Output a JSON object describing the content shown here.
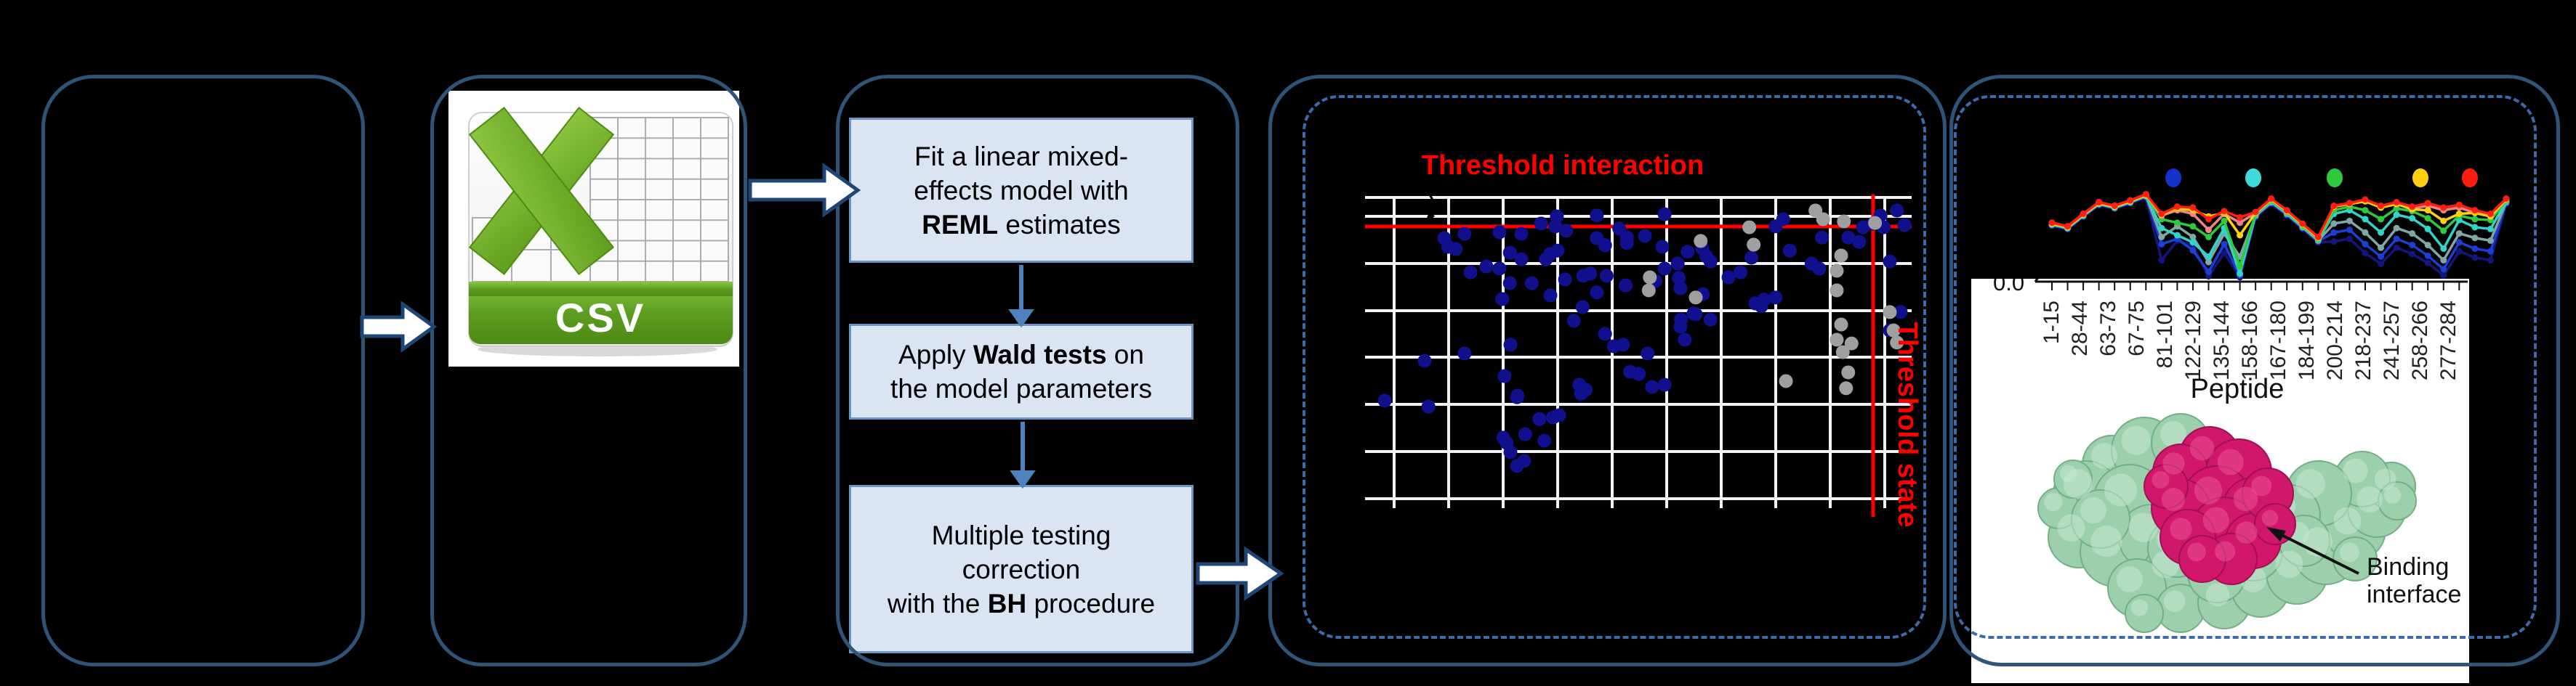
{
  "csv_icon": {
    "label": "CSV",
    "green": "#6fb12a",
    "banner_dark": "#4e8a16"
  },
  "flowchart": {
    "boxes": [
      {
        "lines": [
          [
            {
              "t": "Fit a linear mixed-",
              "b": false
            }
          ],
          [
            {
              "t": "effects model with",
              "b": false
            }
          ],
          [
            {
              "t": "REML",
              "b": true
            },
            {
              "t": " estimates",
              "b": false
            }
          ]
        ]
      },
      {
        "lines": [
          [
            {
              "t": "Apply ",
              "b": false
            },
            {
              "t": "Wald tests",
              "b": true
            },
            {
              "t": " on",
              "b": false
            }
          ],
          [
            {
              "t": "the model parameters",
              "b": false
            }
          ]
        ]
      },
      {
        "lines": [
          [
            {
              "t": "Multiple testing",
              "b": false
            }
          ],
          [
            {
              "t": "correction",
              "b": false
            }
          ],
          [
            {
              "t": "with the ",
              "b": false
            },
            {
              "t": "BH",
              "b": true
            },
            {
              "t": " procedure",
              "b": false
            }
          ]
        ]
      }
    ]
  },
  "chart_data": [
    {
      "type": "scatter",
      "title": "Threshold interaction",
      "state_label": "Threshold state",
      "threshold_color": "#ff0000",
      "point_color": "#10108f",
      "gray_color": "#9f9f9f",
      "grid": "on",
      "threshold_interaction_y": 0.093,
      "threshold_state_x": 0.93,
      "blue_points": [
        [
          0.145,
          0.131
        ],
        [
          0.152,
          0.159
        ],
        [
          0.166,
          0.166
        ],
        [
          0.182,
          0.117
        ],
        [
          0.193,
          0.241
        ],
        [
          0.222,
          0.222
        ],
        [
          0.246,
          0.112
        ],
        [
          0.286,
          0.117
        ],
        [
          0.246,
          0.229
        ],
        [
          0.265,
          0.178
        ],
        [
          0.339,
          0.182
        ],
        [
          0.286,
          0.199
        ],
        [
          0.351,
          0.061
        ],
        [
          0.424,
          0.058
        ],
        [
          0.548,
          0.054
        ],
        [
          0.322,
          0.084
        ],
        [
          0.348,
          0.093
        ],
        [
          0.368,
          0.107
        ],
        [
          0.465,
          0.1
        ],
        [
          0.479,
          0.129
        ],
        [
          0.544,
          0.159
        ],
        [
          0.424,
          0.131
        ],
        [
          0.439,
          0.154
        ],
        [
          0.479,
          0.147
        ],
        [
          0.512,
          0.124
        ],
        [
          0.548,
          0.229
        ],
        [
          0.572,
          0.213
        ],
        [
          0.531,
          0.269
        ],
        [
          0.574,
          0.259
        ],
        [
          0.399,
          0.252
        ],
        [
          0.442,
          0.252
        ],
        [
          0.477,
          0.283
        ],
        [
          0.305,
          0.276
        ],
        [
          0.331,
          0.199
        ],
        [
          0.339,
          0.315
        ],
        [
          0.352,
          0.171
        ],
        [
          0.366,
          0.264
        ],
        [
          0.382,
          0.397
        ],
        [
          0.398,
          0.353
        ],
        [
          0.412,
          0.245
        ],
        [
          0.424,
          0.306
        ],
        [
          0.439,
          0.439
        ],
        [
          0.455,
          0.479
        ],
        [
          0.472,
          0.474
        ],
        [
          0.485,
          0.561
        ],
        [
          0.501,
          0.568
        ],
        [
          0.517,
          0.502
        ],
        [
          0.525,
          0.61
        ],
        [
          0.548,
          0.603
        ],
        [
          0.392,
          0.603
        ],
        [
          0.404,
          0.619
        ],
        [
          0.344,
          0.708
        ],
        [
          0.036,
          0.654
        ],
        [
          0.116,
          0.673
        ],
        [
          0.109,
          0.526
        ],
        [
          0.182,
          0.502
        ],
        [
          0.251,
          0.327
        ],
        [
          0.265,
          0.276
        ],
        [
          0.266,
          0.474
        ],
        [
          0.255,
          0.575
        ],
        [
          0.278,
          0.643
        ],
        [
          0.293,
          0.762
        ],
        [
          0.259,
          0.79
        ],
        [
          0.266,
          0.82
        ],
        [
          0.278,
          0.864
        ],
        [
          0.319,
          0.713
        ],
        [
          0.355,
          0.701
        ],
        [
          0.253,
          0.773
        ],
        [
          0.291,
          0.848
        ],
        [
          0.328,
          0.783
        ],
        [
          0.395,
          0.631
        ],
        [
          0.279,
          0.638
        ],
        [
          0.59,
          0.175
        ],
        [
          0.617,
          0.164
        ],
        [
          0.624,
          0.189
        ],
        [
          0.632,
          0.206
        ],
        [
          0.577,
          0.292
        ],
        [
          0.618,
          0.311
        ],
        [
          0.605,
          0.376
        ],
        [
          0.578,
          0.393
        ],
        [
          0.577,
          0.416
        ],
        [
          0.601,
          0.374
        ],
        [
          0.632,
          0.393
        ],
        [
          0.585,
          0.458
        ],
        [
          0.665,
          0.257
        ],
        [
          0.687,
          0.241
        ],
        [
          0.707,
          0.194
        ],
        [
          0.751,
          0.093
        ],
        [
          0.765,
          0.07
        ],
        [
          0.714,
          0.341
        ],
        [
          0.725,
          0.35
        ],
        [
          0.73,
          0.329
        ],
        [
          0.751,
          0.322
        ],
        [
          0.777,
          0.171
        ],
        [
          0.817,
          0.213
        ],
        [
          0.831,
          0.229
        ],
        [
          0.836,
          0.129
        ],
        [
          0.884,
          0.129
        ],
        [
          0.904,
          0.143
        ],
        [
          0.911,
          0.096
        ],
        [
          0.93,
          0.084
        ],
        [
          0.943,
          0.058
        ],
        [
          0.949,
          0.096
        ],
        [
          0.973,
          0.042
        ],
        [
          0.987,
          0.089
        ],
        [
          0.96,
          0.206
        ],
        [
          0.98,
          0.369
        ],
        [
          0.96,
          0.428
        ]
      ],
      "gray_points": [
        [
          0.824,
          0.042
        ],
        [
          0.838,
          0.07
        ],
        [
          0.876,
          0.077
        ],
        [
          0.933,
          0.082
        ],
        [
          0.703,
          0.096
        ],
        [
          0.711,
          0.152
        ],
        [
          0.614,
          0.14
        ],
        [
          0.605,
          0.322
        ],
        [
          0.521,
          0.257
        ],
        [
          0.519,
          0.299
        ],
        [
          0.871,
          0.187
        ],
        [
          0.863,
          0.236
        ],
        [
          0.863,
          0.299
        ],
        [
          0.96,
          0.369
        ],
        [
          0.871,
          0.409
        ],
        [
          0.863,
          0.458
        ],
        [
          0.89,
          0.47
        ],
        [
          0.874,
          0.498
        ],
        [
          0.884,
          0.563
        ],
        [
          0.88,
          0.614
        ],
        [
          0.77,
          0.591
        ],
        [
          0.967,
          0.428
        ],
        [
          0.973,
          0.467
        ]
      ]
    },
    {
      "type": "line",
      "x_title": "Peptide",
      "y_tick": "0.0",
      "x_labels": [
        "1-15",
        "28-44",
        "63-73",
        "67-75",
        "81-101",
        "122-129",
        "135-144",
        "158-166",
        "167-180",
        "184-199",
        "200-214",
        "218-237",
        "241-257",
        "258-266",
        "277-284"
      ],
      "legend_colors": [
        "#1431c8",
        "#3fd9d9",
        "#2ec93c",
        "#ffd012",
        "#ff1d12"
      ],
      "series": [
        {
          "name": "navy",
          "color": "#15157e",
          "values": [
            0.63,
            0.59,
            0.73,
            0.86,
            0.82,
            0.88,
            0.94,
            0.24,
            0.46,
            0.4,
            0.06,
            0.32,
            0.05,
            0.72,
            0.87,
            0.74,
            0.59,
            0.44,
            0.45,
            0.48,
            0.32,
            0.2,
            0.38,
            0.31,
            0.21,
            0.07,
            0.34,
            0.27,
            0.24,
            0.87
          ]
        },
        {
          "name": "blue",
          "color": "#1b3fd3",
          "values": [
            0.63,
            0.59,
            0.73,
            0.86,
            0.82,
            0.88,
            0.95,
            0.42,
            0.48,
            0.35,
            0.11,
            0.42,
            0.07,
            0.73,
            0.88,
            0.75,
            0.6,
            0.45,
            0.55,
            0.58,
            0.42,
            0.28,
            0.48,
            0.41,
            0.29,
            0.14,
            0.44,
            0.37,
            0.34,
            0.88
          ]
        },
        {
          "name": "cadet",
          "color": "#7fa8a4",
          "values": [
            0.64,
            0.6,
            0.74,
            0.87,
            0.83,
            0.89,
            0.96,
            0.5,
            0.62,
            0.5,
            0.22,
            0.54,
            0.28,
            0.74,
            0.89,
            0.76,
            0.61,
            0.46,
            0.65,
            0.68,
            0.55,
            0.38,
            0.6,
            0.54,
            0.41,
            0.24,
            0.54,
            0.49,
            0.46,
            0.89
          ]
        },
        {
          "name": "cyan",
          "color": "#30d5c8",
          "values": [
            0.64,
            0.6,
            0.74,
            0.87,
            0.83,
            0.89,
            0.96,
            0.6,
            0.52,
            0.44,
            0.28,
            0.6,
            0.09,
            0.75,
            0.9,
            0.77,
            0.62,
            0.47,
            0.76,
            0.8,
            0.7,
            0.55,
            0.75,
            0.71,
            0.59,
            0.37,
            0.69,
            0.61,
            0.59,
            0.9
          ]
        },
        {
          "name": "green",
          "color": "#2ec93c",
          "values": [
            0.65,
            0.61,
            0.75,
            0.88,
            0.84,
            0.9,
            0.97,
            0.7,
            0.66,
            0.62,
            0.5,
            0.68,
            0.17,
            0.76,
            0.91,
            0.78,
            0.63,
            0.48,
            0.8,
            0.84,
            0.8,
            0.7,
            0.82,
            0.79,
            0.71,
            0.57,
            0.74,
            0.7,
            0.69,
            0.91
          ]
        },
        {
          "name": "pink",
          "color": "#ee8585",
          "values": [
            0.66,
            0.62,
            0.76,
            0.89,
            0.85,
            0.91,
            0.97,
            0.74,
            0.8,
            0.76,
            0.58,
            0.76,
            0.66,
            0.77,
            0.92,
            0.79,
            0.64,
            0.49,
            0.84,
            0.87,
            0.9,
            0.83,
            0.87,
            0.82,
            0.85,
            0.8,
            0.83,
            0.77,
            0.74,
            0.92
          ]
        },
        {
          "name": "yellow",
          "color": "#ffd012",
          "values": [
            0.65,
            0.61,
            0.75,
            0.88,
            0.84,
            0.9,
            0.97,
            0.75,
            0.82,
            0.8,
            0.73,
            0.77,
            0.52,
            0.77,
            0.92,
            0.79,
            0.64,
            0.49,
            0.84,
            0.87,
            0.9,
            0.83,
            0.87,
            0.81,
            0.8,
            0.68,
            0.76,
            0.77,
            0.73,
            0.92
          ]
        },
        {
          "name": "red",
          "color": "#ff1d12",
          "values": [
            0.66,
            0.62,
            0.76,
            0.89,
            0.85,
            0.91,
            0.98,
            0.76,
            0.84,
            0.83,
            0.7,
            0.79,
            0.72,
            0.78,
            0.93,
            0.8,
            0.65,
            0.5,
            0.85,
            0.88,
            0.92,
            0.85,
            0.89,
            0.84,
            0.88,
            0.83,
            0.86,
            0.8,
            0.76,
            0.93
          ]
        }
      ]
    }
  ],
  "protein": {
    "label_line1": "Binding",
    "label_line2": "interface",
    "green": "#9cd0ac",
    "green_dark": "#74ae88",
    "pink": "#d1176b",
    "pink_dark": "#a30f52"
  }
}
